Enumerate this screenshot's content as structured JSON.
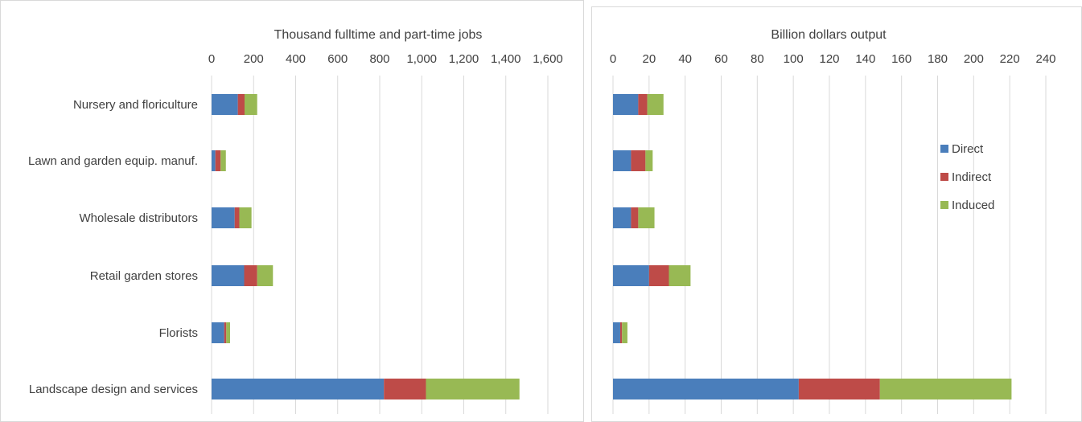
{
  "chart_data": [
    {
      "type": "bar",
      "orientation": "horizontal",
      "stacked": true,
      "title": "Thousand fulltime and part-time jobs",
      "categories": [
        "Nursery and floriculture",
        "Lawn and garden equip. manuf.",
        "Wholesale distributors",
        "Retail garden stores",
        "Florists",
        "Landscape design and services"
      ],
      "series": [
        {
          "name": "Direct",
          "values": [
            125,
            18,
            110,
            155,
            60,
            820
          ]
        },
        {
          "name": "Indirect",
          "values": [
            32,
            25,
            22,
            62,
            10,
            200
          ]
        },
        {
          "name": "Induced",
          "values": [
            60,
            25,
            58,
            75,
            18,
            445
          ]
        }
      ],
      "xlim": [
        0,
        1600
      ],
      "xticks": [
        "0",
        "200",
        "400",
        "600",
        "800",
        "1,000",
        "1,200",
        "1,400",
        "1,600"
      ],
      "tick_step": 200,
      "grid": true,
      "legend": "none"
    },
    {
      "type": "bar",
      "orientation": "horizontal",
      "stacked": true,
      "title": "Billion dollars output",
      "categories": [
        "Nursery and floriculture",
        "Lawn and garden equip. manuf.",
        "Wholesale distributors",
        "Retail garden stores",
        "Florists",
        "Landscape design and services"
      ],
      "series": [
        {
          "name": "Direct",
          "values": [
            14,
            10,
            10,
            20,
            4,
            103
          ]
        },
        {
          "name": "Indirect",
          "values": [
            5,
            8,
            4,
            11,
            1,
            45
          ]
        },
        {
          "name": "Induced",
          "values": [
            9,
            4,
            9,
            12,
            3,
            73
          ]
        }
      ],
      "xlim": [
        0,
        240
      ],
      "xticks": [
        "0",
        "20",
        "40",
        "60",
        "80",
        "100",
        "120",
        "140",
        "160",
        "180",
        "200",
        "220",
        "240"
      ],
      "tick_step": 20,
      "grid": true,
      "legend": "right"
    }
  ],
  "colors": {
    "Direct": "#4a7ebb",
    "Indirect": "#be4b48",
    "Induced": "#98b954",
    "grid": "#d9d9d9",
    "text": "#404040"
  }
}
